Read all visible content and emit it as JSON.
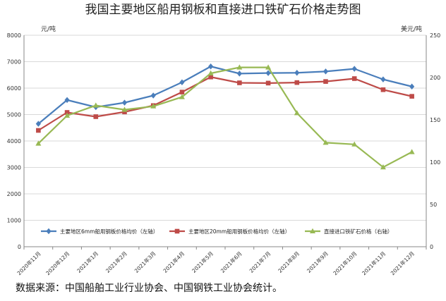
{
  "chart_data": {
    "type": "line",
    "title": "我国主要地区船用钢板和直接进口铁矿石价格走势图",
    "y_left_unit": "元/吨",
    "y_right_unit": "美元/吨",
    "y_left_range": [
      0,
      8000
    ],
    "y_left_ticks": [
      "0",
      "1000",
      "2000",
      "3000",
      "4000",
      "5000",
      "6000",
      "7000",
      "8000"
    ],
    "y_right_range": [
      0,
      250
    ],
    "y_right_ticks": [
      "0",
      "50",
      "100",
      "150",
      "200",
      "250"
    ],
    "categories": [
      "2020年11月",
      "2020年12月",
      "2021年1月",
      "2021年2月",
      "2021年3月",
      "2021年4月",
      "2021年5月",
      "2021年6月",
      "2021年7月",
      "2021年8月",
      "2021年9月",
      "2021年10月",
      "2021年11月",
      "2021年12月"
    ],
    "series": [
      {
        "name": "主要地区6mm船用钢板价格均价（左轴）",
        "axis": "left",
        "color": "#4a7ebb",
        "marker": "diamond",
        "values": [
          4650,
          5550,
          5280,
          5450,
          5720,
          6220,
          6820,
          6550,
          6570,
          6580,
          6630,
          6730,
          6330,
          6060
        ]
      },
      {
        "name": "主要地区20mm船用钢板价格均价（左轴）",
        "axis": "left",
        "color": "#be4b48",
        "marker": "square",
        "values": [
          4400,
          5080,
          4920,
          5100,
          5340,
          5850,
          6420,
          6200,
          6190,
          6210,
          6250,
          6360,
          5940,
          5690
        ]
      },
      {
        "name": "直接进口铁矿石价格（右轴）",
        "axis": "right",
        "color": "#98b954",
        "marker": "triangle",
        "values": [
          122,
          155,
          167,
          162,
          166,
          177,
          205,
          212,
          212,
          158,
          123,
          121,
          94,
          112
        ]
      }
    ],
    "grid": true,
    "legend": "bottom-inside"
  },
  "source_note": "数据来源：中国船舶工业行业协会、中国钢铁工业协会统计。"
}
